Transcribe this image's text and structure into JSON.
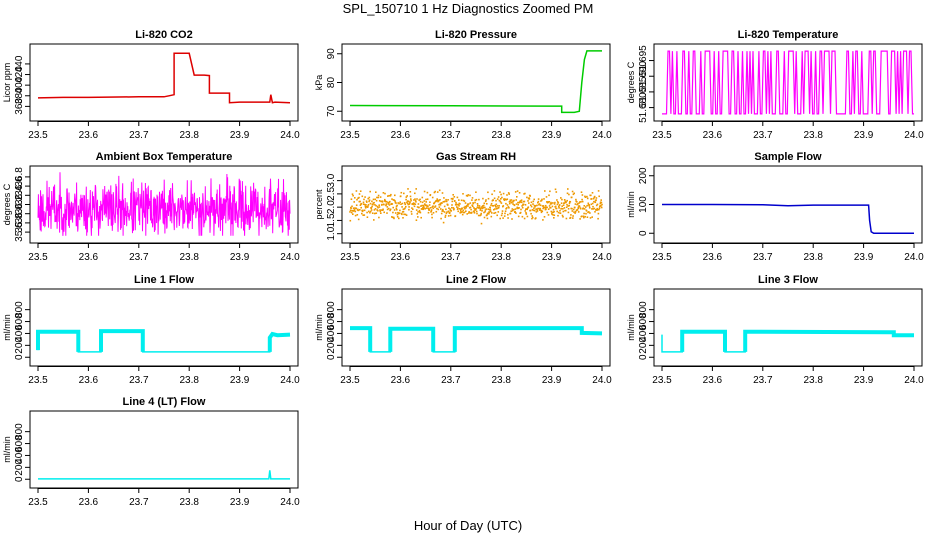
{
  "page": {
    "title": "SPL_150710  1 Hz Diagnostics Zoomed PM",
    "xlabel": "Hour of Day (UTC)"
  },
  "chart_data": [
    {
      "type": "line",
      "title": "Li-820 CO2",
      "ylabel": "Licor ppm",
      "color": "#dd0000",
      "xlim": [
        23.5,
        24.0
      ],
      "ylim": [
        340,
        470
      ],
      "xticks": [
        "23.5",
        "23.6",
        "23.7",
        "23.8",
        "23.9",
        "24.0"
      ],
      "yticks": [
        [
          "360",
          "360"
        ],
        [
          "380",
          "380"
        ],
        [
          "400",
          "400"
        ],
        [
          "420",
          "420"
        ],
        [
          "440",
          "440"
        ]
      ],
      "x": [
        23.5,
        23.55,
        23.6,
        23.7,
        23.75,
        23.76,
        23.77,
        23.77,
        23.8,
        23.81,
        23.83,
        23.84,
        23.84,
        23.88,
        23.88,
        23.9,
        23.95,
        23.96,
        23.962,
        23.965,
        23.97,
        24.0
      ],
      "y": [
        376,
        377,
        377,
        378,
        378,
        380,
        382,
        460,
        460,
        419,
        419,
        418,
        385,
        385,
        367,
        368,
        368,
        368,
        382,
        367,
        368,
        367
      ]
    },
    {
      "type": "line",
      "title": "Li-820 Pressure",
      "ylabel": "kPa",
      "color": "#00cc00",
      "xlim": [
        23.5,
        24.0
      ],
      "ylim": [
        68,
        92
      ],
      "xticks": [
        "23.5",
        "23.6",
        "23.7",
        "23.8",
        "23.9",
        "24.0"
      ],
      "yticks": [
        [
          "70",
          "70"
        ],
        [
          "80",
          "80"
        ],
        [
          "90",
          "90"
        ]
      ],
      "x": [
        23.5,
        23.7,
        23.9,
        23.92,
        23.92,
        23.945,
        23.955,
        23.96,
        23.965,
        23.97,
        24.0
      ],
      "y": [
        72.0,
        71.9,
        71.8,
        71.8,
        69.6,
        69.6,
        70.0,
        80.0,
        88.0,
        91.0,
        91.0
      ]
    },
    {
      "type": "line",
      "title": "Li-820 Temperature",
      "ylabel": "degrees C",
      "color": "#ff00ff",
      "xlim": [
        23.5,
        24.0
      ],
      "ylim": [
        51.677,
        51.699
      ],
      "xticks": [
        "23.5",
        "23.6",
        "23.7",
        "23.8",
        "23.9",
        "24.0"
      ],
      "yticks": [
        [
          "51.680",
          "51.680"
        ],
        [
          "51.685",
          "51.685"
        ],
        [
          "51.690",
          "51.690"
        ],
        [
          "51.695",
          "51.695"
        ]
      ],
      "pattern": "binary",
      "low": 51.678,
      "high": 51.698,
      "seed": 11,
      "n": 170
    },
    {
      "type": "line",
      "title": "Ambient Box Temperature",
      "ylabel": "degrees C",
      "color": "#ff00ff",
      "xlim": [
        23.5,
        24.0
      ],
      "ylim": [
        35.45,
        36.95
      ],
      "xticks": [
        "23.5",
        "23.6",
        "23.7",
        "23.8",
        "23.9",
        "24.0"
      ],
      "yticks": [
        [
          "35.6",
          "35.6"
        ],
        [
          "35.8",
          "35.8"
        ],
        [
          "36.0",
          "36.0"
        ],
        [
          "36.2",
          "36.2"
        ],
        [
          "36.4",
          "36.4"
        ],
        [
          "36.6",
          "36.6"
        ],
        [
          "36.8",
          "36.8"
        ]
      ],
      "pattern": "noise",
      "mean": 36.1,
      "amp": 0.45,
      "clampLow": 35.52,
      "clampHigh": 36.9,
      "seed": 23,
      "n": 700
    },
    {
      "type": "scatter",
      "title": "Gas Stream RH",
      "ylabel": "percent",
      "color": "#ee9900",
      "xlim": [
        23.5,
        24.0
      ],
      "ylim": [
        0.8,
        3.4
      ],
      "xticks": [
        "23.5",
        "23.6",
        "23.7",
        "23.8",
        "23.9",
        "24.0"
      ],
      "yticks": [
        [
          "1.0",
          "1.0"
        ],
        [
          "1.5",
          "1.5"
        ],
        [
          "2.0",
          "2.0"
        ],
        [
          "2.5",
          "2.5"
        ],
        [
          "3.0",
          "3.0"
        ]
      ],
      "pattern": "noise",
      "mean": 2.05,
      "amp": 0.38,
      "clampLow": 1.2,
      "clampHigh": 3.3,
      "seed": 37,
      "n": 900
    },
    {
      "type": "line",
      "title": "Sample Flow",
      "ylabel": "ml/min",
      "color": "#0000cc",
      "xlim": [
        23.5,
        24.0
      ],
      "ylim": [
        -20,
        220
      ],
      "xticks": [
        "23.5",
        "23.6",
        "23.7",
        "23.8",
        "23.9",
        "24.0"
      ],
      "yticks": [
        [
          "0",
          "0"
        ],
        [
          "100",
          "100"
        ],
        [
          "200",
          "200"
        ]
      ],
      "x": [
        23.5,
        23.6,
        23.7,
        23.75,
        23.8,
        23.91,
        23.912,
        23.915,
        23.92,
        23.95,
        24.0
      ],
      "y": [
        100,
        100,
        99,
        96,
        98,
        98,
        45,
        5,
        0,
        0,
        0
      ]
    },
    {
      "type": "line",
      "title": "Line 1 Flow",
      "ylabel": "ml/min",
      "color": "#00eeee",
      "xlim": [
        23.5,
        24.0
      ],
      "ylim": [
        -80,
        1080
      ],
      "xticks": [
        "23.5",
        "23.6",
        "23.7",
        "23.8",
        "23.9",
        "24.0"
      ],
      "yticks": [
        [
          "0",
          "0"
        ],
        [
          "200",
          "200"
        ],
        [
          "400",
          "400"
        ],
        [
          "600",
          "600"
        ],
        [
          "800",
          "800"
        ]
      ],
      "x": [
        23.5,
        23.5,
        23.502,
        23.58,
        23.58,
        23.625,
        23.625,
        23.708,
        23.708,
        23.96,
        23.96,
        23.965,
        23.975,
        24.0
      ],
      "y": [
        120,
        430,
        430,
        430,
        90,
        90,
        440,
        440,
        90,
        90,
        330,
        390,
        370,
        380
      ],
      "thick": [
        [
          23.5,
          23.58
        ],
        [
          23.625,
          23.708
        ],
        [
          23.96,
          24.0
        ]
      ]
    },
    {
      "type": "line",
      "title": "Line 2 Flow",
      "ylabel": "ml/min",
      "color": "#00eeee",
      "xlim": [
        23.5,
        24.0
      ],
      "ylim": [
        -80,
        1080
      ],
      "xticks": [
        "23.5",
        "23.6",
        "23.7",
        "23.8",
        "23.9",
        "24.0"
      ],
      "yticks": [
        [
          "0",
          "0"
        ],
        [
          "200",
          "200"
        ],
        [
          "400",
          "400"
        ],
        [
          "600",
          "600"
        ],
        [
          "800",
          "800"
        ]
      ],
      "x": [
        23.5,
        23.54,
        23.54,
        23.58,
        23.58,
        23.665,
        23.665,
        23.708,
        23.708,
        23.96,
        23.96,
        24.0
      ],
      "y": [
        490,
        490,
        90,
        90,
        480,
        480,
        90,
        90,
        490,
        490,
        410,
        400
      ],
      "thick": [
        [
          23.5,
          23.54
        ],
        [
          23.58,
          23.665
        ],
        [
          23.708,
          24.0
        ]
      ]
    },
    {
      "type": "line",
      "title": "Line 3 Flow",
      "ylabel": "ml/min",
      "color": "#00eeee",
      "xlim": [
        23.5,
        24.0
      ],
      "ylim": [
        -80,
        1080
      ],
      "xticks": [
        "23.5",
        "23.6",
        "23.7",
        "23.8",
        "23.9",
        "24.0"
      ],
      "yticks": [
        [
          "0",
          "0"
        ],
        [
          "200",
          "200"
        ],
        [
          "400",
          "400"
        ],
        [
          "600",
          "600"
        ],
        [
          "800",
          "800"
        ]
      ],
      "x": [
        23.5,
        23.5,
        23.502,
        23.54,
        23.54,
        23.625,
        23.625,
        23.665,
        23.665,
        23.96,
        23.96,
        24.0
      ],
      "y": [
        380,
        90,
        90,
        90,
        430,
        430,
        90,
        90,
        430,
        420,
        370,
        370
      ],
      "thick": [
        [
          23.54,
          23.625
        ],
        [
          23.665,
          24.0
        ]
      ]
    },
    {
      "type": "line",
      "title": "Line 4 (LT) Flow",
      "ylabel": "ml/min",
      "color": "#00eeee",
      "xlim": [
        23.5,
        24.0
      ],
      "ylim": [
        -80,
        1080
      ],
      "xticks": [
        "23.5",
        "23.6",
        "23.7",
        "23.8",
        "23.9",
        "24.0"
      ],
      "yticks": [
        [
          "0",
          "0"
        ],
        [
          "200",
          "200"
        ],
        [
          "400",
          "400"
        ],
        [
          "600",
          "600"
        ],
        [
          "800",
          "800"
        ]
      ],
      "x": [
        23.5,
        23.958,
        23.96,
        23.962,
        23.964,
        24.0
      ],
      "y": [
        5,
        5,
        150,
        5,
        5,
        5
      ]
    }
  ]
}
